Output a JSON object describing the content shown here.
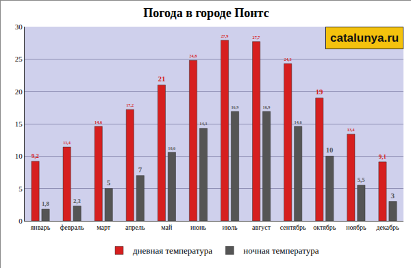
{
  "chart_data": {
    "type": "bar",
    "title": "Погода в городе Понтс",
    "categories": [
      "январь",
      "февраль",
      "март",
      "апрель",
      "май",
      "июнь",
      "июль",
      "август",
      "сентябрь",
      "октябрь",
      "ноябрь",
      "декабрь"
    ],
    "series": [
      {
        "name": "дневная температура",
        "color": "#d61f1f",
        "values": [
          9.2,
          11.4,
          14.6,
          17.2,
          21,
          24.8,
          27.9,
          27.7,
          24.3,
          19,
          13.4,
          9.1
        ],
        "value_labels": [
          "9,2",
          "11,4",
          "14,6",
          "17,2",
          "21",
          "24,8",
          "27,9",
          "27,7",
          "24,3",
          "19",
          "13,4",
          "9,1"
        ]
      },
      {
        "name": "ночная температура",
        "color": "#555555",
        "values": [
          1.8,
          2.3,
          5,
          7,
          10.6,
          14.3,
          16.9,
          16.9,
          14.6,
          10,
          5.5,
          3
        ],
        "value_labels": [
          "1,8",
          "2,3",
          "5",
          "7",
          "10,6",
          "14,3",
          "16,9",
          "16,9",
          "14,6",
          "10",
          "5,5",
          "3"
        ]
      }
    ],
    "ylim": [
      0,
      30
    ],
    "yticks": [
      0,
      5,
      10,
      15,
      20,
      25,
      30
    ],
    "grid": true,
    "data_labels": true,
    "legend": "bottom",
    "annotations": [
      "catalunya.ru"
    ]
  }
}
